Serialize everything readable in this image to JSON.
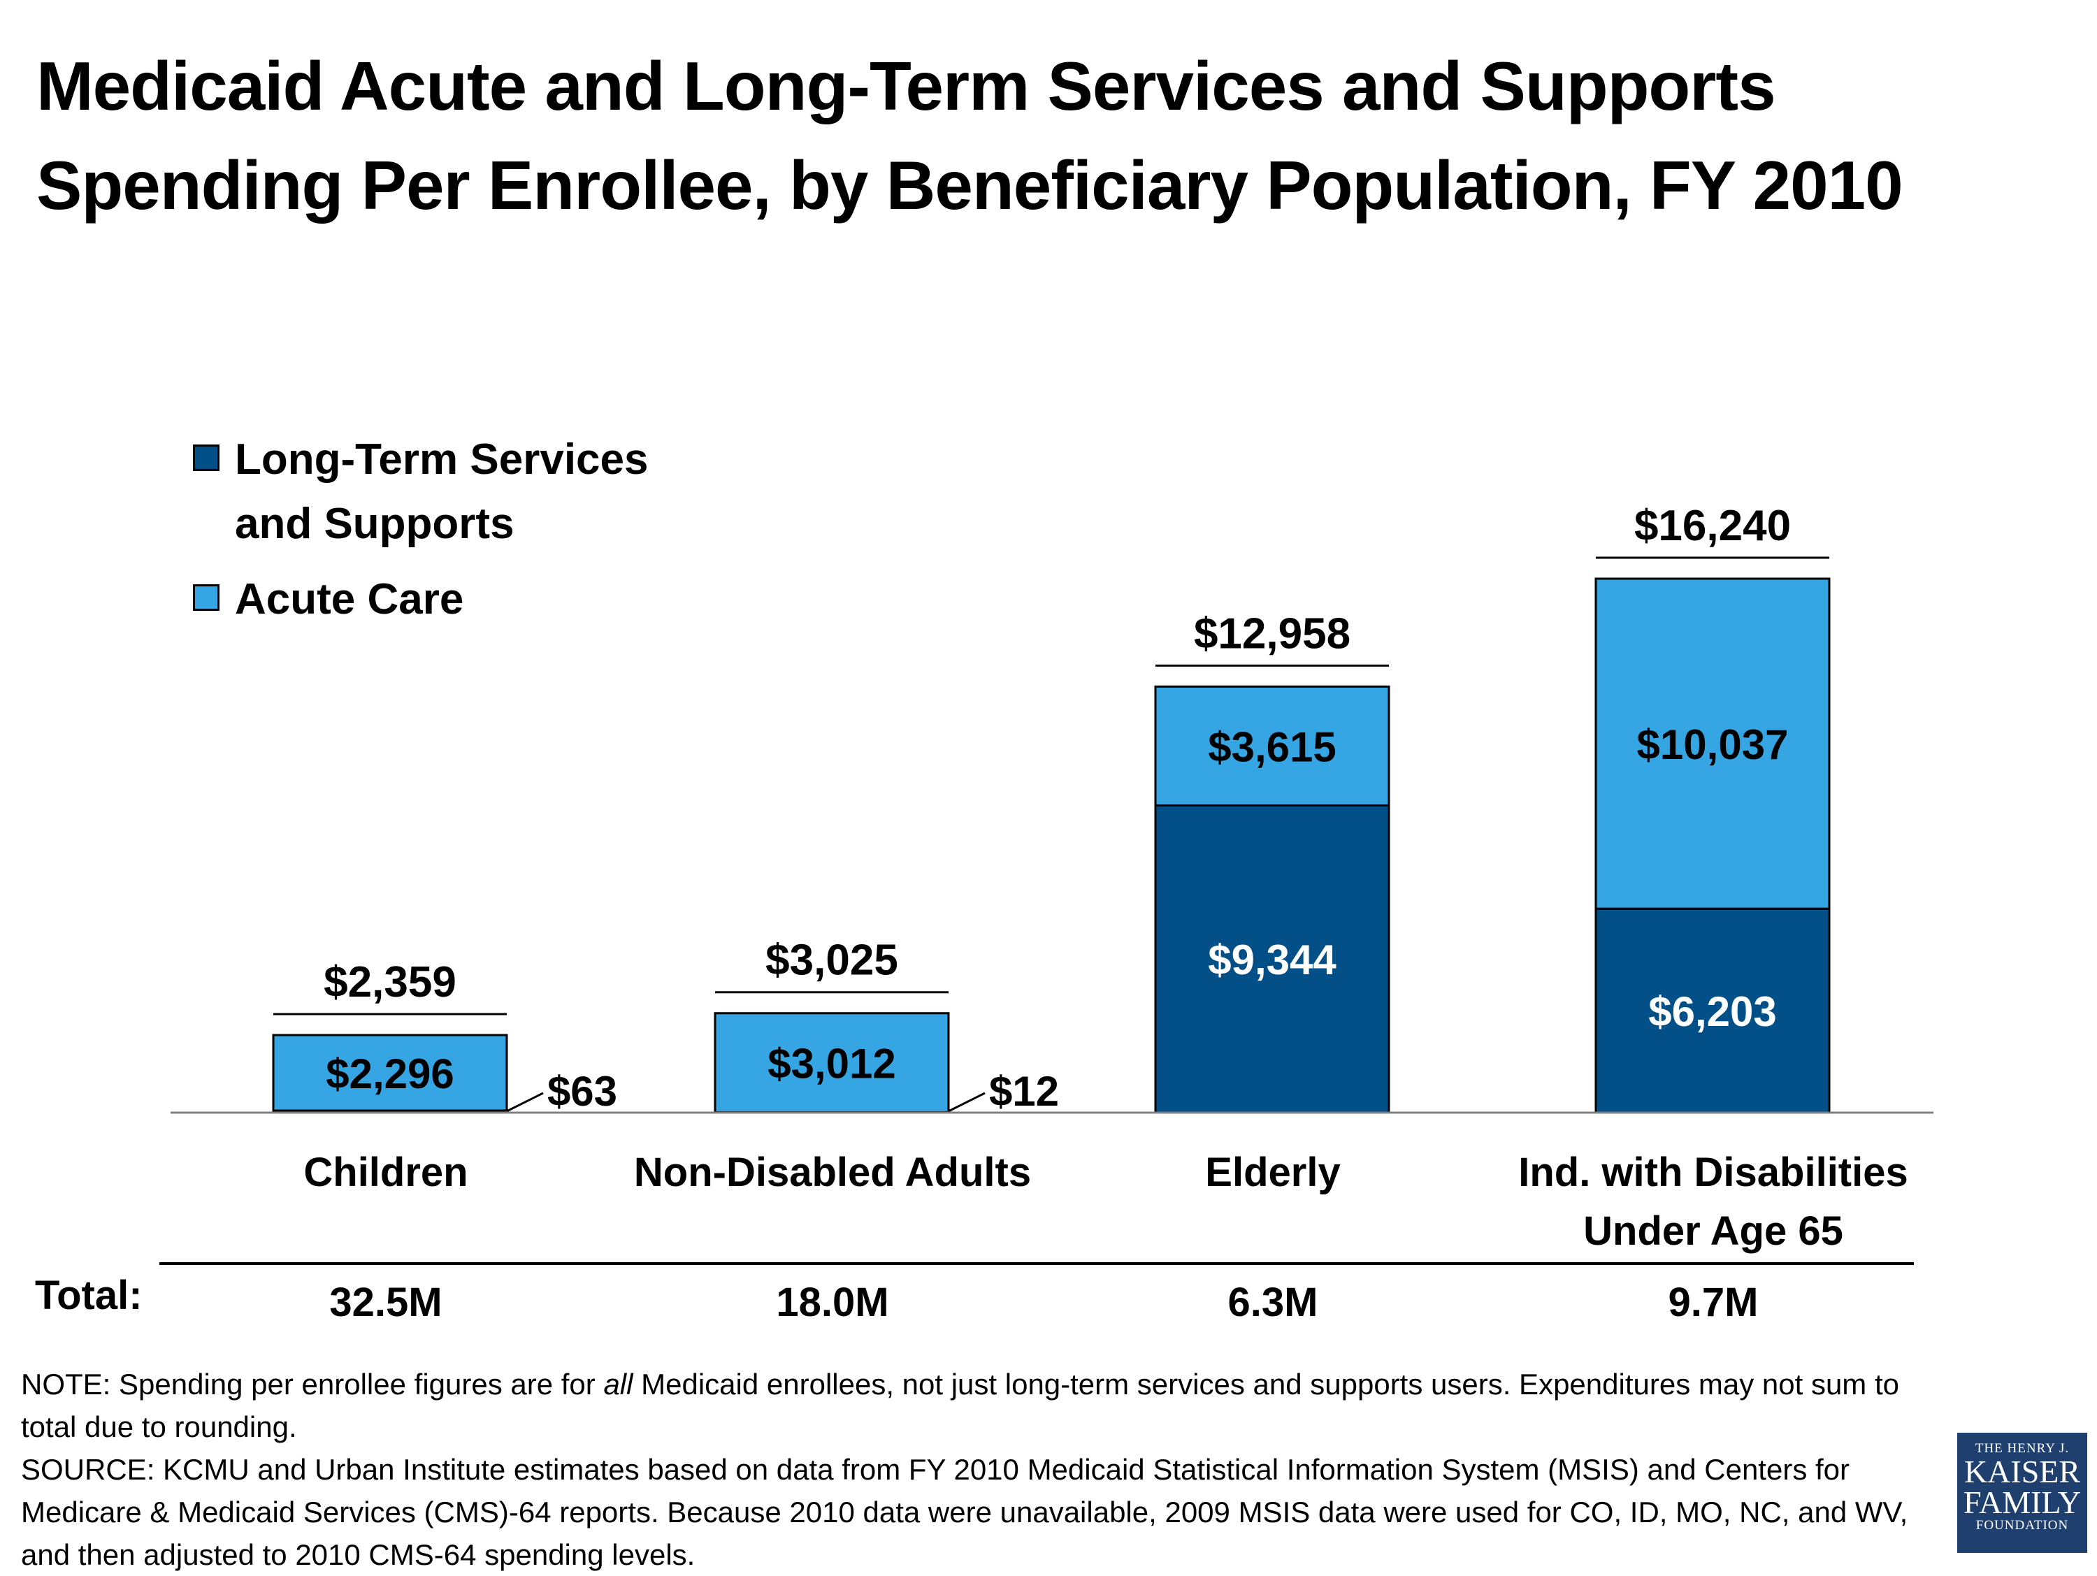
{
  "title": {
    "line1": "Medicaid Acute and Long-Term Services and Supports",
    "line2": "Spending Per Enrollee, by Beneficiary Population, FY 2010"
  },
  "legend": {
    "ltss": "Long-Term Services",
    "ltss2": "and Supports",
    "acute": "Acute Care"
  },
  "colors": {
    "ltss": "#034f87",
    "acute": "#35a5e3"
  },
  "chart_data": {
    "type": "bar",
    "stacked": true,
    "categories": [
      "Children",
      "Non-Disabled Adults",
      "Elderly",
      "Ind. with Disabilities Under Age 65"
    ],
    "series": [
      {
        "name": "Long-Term Services and Supports",
        "values": [
          63,
          12,
          9344,
          6203
        ],
        "labels": [
          "$63",
          "$12",
          "$9,344",
          "$6,203"
        ]
      },
      {
        "name": "Acute Care",
        "values": [
          2296,
          3012,
          3615,
          10037
        ],
        "labels": [
          "$2,296",
          "$3,012",
          "$3,615",
          "$10,037"
        ]
      }
    ],
    "totals": [
      2359,
      3025,
      12958,
      16240
    ],
    "total_labels": [
      "$2,359",
      "$3,025",
      "$12,958",
      "$16,240"
    ],
    "ylim": [
      0,
      16240
    ],
    "grid": false,
    "legend_position": "top-left"
  },
  "category_labels": [
    {
      "line1": "Children",
      "line2": ""
    },
    {
      "line1": "Non-Disabled Adults",
      "line2": ""
    },
    {
      "line1": "Elderly",
      "line2": ""
    },
    {
      "line1": "Ind. with Disabilities",
      "line2": "Under Age 65"
    }
  ],
  "enrollment": {
    "label": "Total:",
    "values": [
      "32.5M",
      "18.0M",
      "6.3M",
      "9.7M"
    ]
  },
  "note": {
    "prefix": "NOTE: Spending per enrollee figures are for ",
    "emphasis": "all",
    "suffix": " Medicaid enrollees, not just long-term services and supports users. Expenditures may not sum to total due to rounding.",
    "source": "SOURCE:  KCMU and Urban Institute estimates based on data from FY 2010 Medicaid Statistical Information System (MSIS) and Centers for Medicare & Medicaid Services (CMS)-64 reports. Because 2010 data were unavailable, 2009 MSIS data were used for CO, ID, MO, NC, and WV, and then adjusted to 2010 CMS-64 spending levels."
  },
  "logo": {
    "line1": "THE HENRY J.",
    "line2": "KAISER",
    "line3": "FAMILY",
    "line4": "FOUNDATION"
  }
}
